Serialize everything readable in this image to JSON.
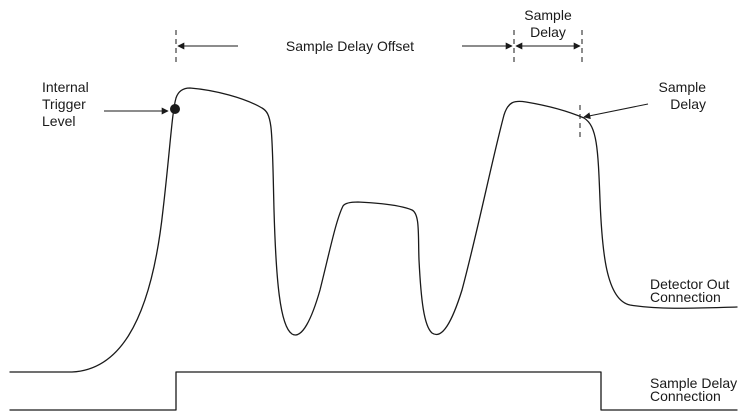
{
  "labels": {
    "sample_delay_offset": "Sample Delay Offset",
    "sample_delay_top_line1": "Sample",
    "sample_delay_top_line2": "Delay",
    "internal_trigger_line1": "Internal",
    "internal_trigger_line2": "Trigger",
    "internal_trigger_line3": "Level",
    "sample_delay_right_line1": "Sample",
    "sample_delay_right_line2": "Delay",
    "detector_out_line1": "Detector Out",
    "detector_out_line2": "Connection",
    "sample_delay_conn_line1": "Sample Delay",
    "sample_delay_conn_line2": "Connection"
  },
  "colors": {
    "line": "#1a1a1a",
    "background": "#ffffff"
  }
}
